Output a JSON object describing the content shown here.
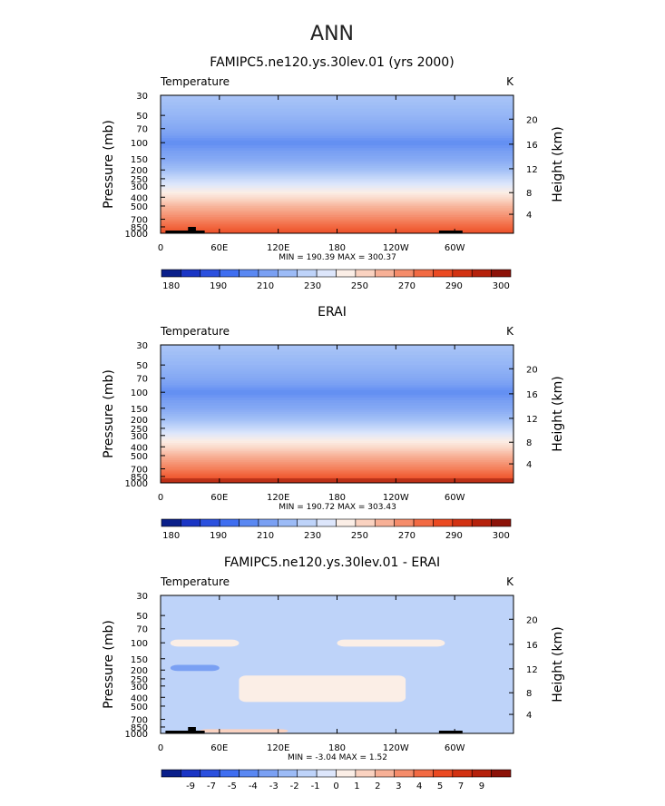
{
  "page_title": "ANN",
  "colors": {
    "temp_levels": [
      "#0a1f8a",
      "#1a35c4",
      "#2b50de",
      "#3f6ef0",
      "#5a88f2",
      "#7aa0f3",
      "#9cbbf6",
      "#bed3f9",
      "#dde6fb",
      "#fbeee6",
      "#fad2c0",
      "#f7b096",
      "#f58c6a",
      "#f26a43",
      "#eb4a22",
      "#d23212",
      "#b5210b",
      "#8c1208"
    ],
    "diff_levels": [
      "#0a1f8a",
      "#1a35c4",
      "#2b50de",
      "#3f6ef0",
      "#5a88f2",
      "#7aa0f3",
      "#9cbbf6",
      "#bed3f9",
      "#dde6fb",
      "#fbeee6",
      "#fad2c0",
      "#f7b096",
      "#f58c6a",
      "#f26a43",
      "#eb4a22",
      "#d23212",
      "#b5210b",
      "#8c1208"
    ]
  },
  "chart_data": [
    {
      "type": "heatmap",
      "title": "FAMIPC5.ne120.ys.30lev.01 (yrs 2000)",
      "variable_label": "Temperature",
      "units": "K",
      "ylabel": "Pressure (mb)",
      "y2label": "Height (km)",
      "x_ticks": [
        "0",
        "60E",
        "120E",
        "180",
        "120W",
        "60W"
      ],
      "y_ticks": [
        "30",
        "50",
        "70",
        "100",
        "150",
        "200",
        "250",
        "300",
        "400",
        "500",
        "700",
        "850",
        "1000"
      ],
      "y2_ticks": [
        "20",
        "16",
        "12",
        "8",
        "4"
      ],
      "minmax_text": "MIN = 190.39  MAX = 300.37",
      "colorbar_labels": [
        "180",
        "190",
        "210",
        "230",
        "250",
        "270",
        "290",
        "300"
      ],
      "colormap": "temp_levels",
      "profile": [
        {
          "p": 30,
          "t": 214
        },
        {
          "p": 50,
          "t": 208
        },
        {
          "p": 70,
          "t": 203
        },
        {
          "p": 100,
          "t": 196
        },
        {
          "p": 150,
          "t": 203
        },
        {
          "p": 200,
          "t": 212
        },
        {
          "p": 250,
          "t": 223
        },
        {
          "p": 300,
          "t": 232
        },
        {
          "p": 400,
          "t": 246
        },
        {
          "p": 500,
          "t": 258
        },
        {
          "p": 700,
          "t": 272
        },
        {
          "p": 850,
          "t": 281
        },
        {
          "p": 1000,
          "t": 288
        }
      ]
    },
    {
      "type": "heatmap",
      "title": "ERAI",
      "variable_label": "Temperature",
      "units": "K",
      "ylabel": "Pressure (mb)",
      "y2label": "Height (km)",
      "x_ticks": [
        "0",
        "60E",
        "120E",
        "180",
        "120W",
        "60W"
      ],
      "y_ticks": [
        "30",
        "50",
        "70",
        "100",
        "150",
        "200",
        "250",
        "300",
        "400",
        "500",
        "700",
        "850",
        "1000"
      ],
      "y2_ticks": [
        "20",
        "16",
        "12",
        "8",
        "4"
      ],
      "minmax_text": "MIN = 190.72  MAX = 303.43",
      "colorbar_labels": [
        "180",
        "190",
        "210",
        "230",
        "250",
        "270",
        "290",
        "300"
      ],
      "colormap": "temp_levels",
      "profile": [
        {
          "p": 30,
          "t": 214
        },
        {
          "p": 50,
          "t": 208
        },
        {
          "p": 70,
          "t": 203
        },
        {
          "p": 100,
          "t": 196
        },
        {
          "p": 150,
          "t": 203
        },
        {
          "p": 200,
          "t": 212
        },
        {
          "p": 250,
          "t": 223
        },
        {
          "p": 300,
          "t": 233
        },
        {
          "p": 400,
          "t": 247
        },
        {
          "p": 500,
          "t": 259
        },
        {
          "p": 700,
          "t": 274
        },
        {
          "p": 850,
          "t": 284
        },
        {
          "p": 1000,
          "t": 291
        }
      ]
    },
    {
      "type": "heatmap",
      "title": "FAMIPC5.ne120.ys.30lev.01 - ERAI",
      "variable_label": "Temperature",
      "units": "K",
      "ylabel": "Pressure (mb)",
      "y2label": "Height (km)",
      "x_ticks": [
        "0",
        "60E",
        "120E",
        "180",
        "120W",
        "60W"
      ],
      "y_ticks": [
        "30",
        "50",
        "70",
        "100",
        "150",
        "200",
        "250",
        "300",
        "400",
        "500",
        "700",
        "850",
        "1000"
      ],
      "y2_ticks": [
        "20",
        "16",
        "12",
        "8",
        "4"
      ],
      "minmax_text": "MIN =  -3.04  MAX =   1.52",
      "colorbar_labels": [
        "-9",
        "-7",
        "-5",
        "-4",
        "-3",
        "-2",
        "-1",
        "0",
        "1",
        "2",
        "3",
        "4",
        "5",
        "7",
        "9"
      ],
      "colormap": "diff_levels",
      "background_value": -0.5,
      "anomalies": [
        {
          "lon": [
            0,
            360
          ],
          "p": [
            30,
            80
          ],
          "v": -0.5
        },
        {
          "lon": [
            10,
            80
          ],
          "p": [
            92,
            110
          ],
          "v": 0.5
        },
        {
          "lon": [
            180,
            290
          ],
          "p": [
            92,
            110
          ],
          "v": 0.5
        },
        {
          "lon": [
            10,
            60
          ],
          "p": [
            175,
            205
          ],
          "v": -2.5
        },
        {
          "lon": [
            80,
            250
          ],
          "p": [
            230,
            450
          ],
          "v": 0.5
        },
        {
          "lon": [
            300,
            360
          ],
          "p": [
            480,
            600
          ],
          "v": -0.5
        },
        {
          "lon": [
            40,
            130
          ],
          "p": [
            900,
            980
          ],
          "v": 1.5
        }
      ]
    }
  ]
}
